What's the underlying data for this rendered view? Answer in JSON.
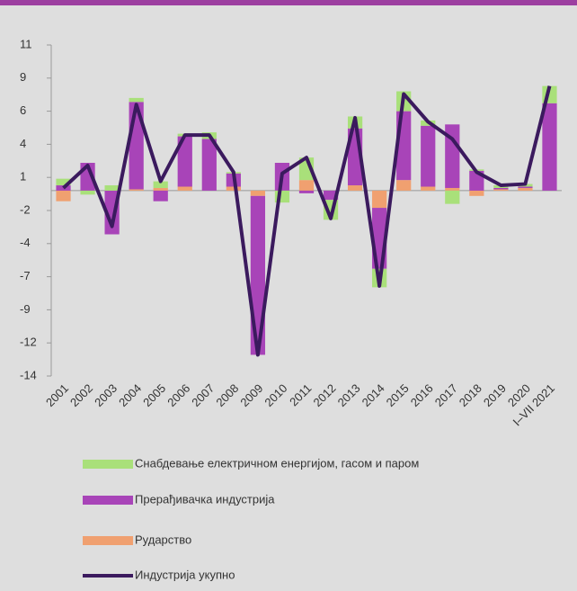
{
  "chart_data": {
    "type": "bar",
    "categories": [
      "2001",
      "2002",
      "2003",
      "2004",
      "2005",
      "2006",
      "2007",
      "2008",
      "2009",
      "2010",
      "2011",
      "2012",
      "2013",
      "2014",
      "2015",
      "2016",
      "2017",
      "2018",
      "2019",
      "2020",
      "I–VII 2021"
    ],
    "series": [
      {
        "name": "Снабдевање електричном енергијом, гасом и паром",
        "color": "#a9e07a",
        "kind": "bar",
        "values": [
          0.5,
          -0.3,
          0.4,
          0.3,
          0.5,
          0.2,
          0.5,
          0.1,
          0,
          -0.9,
          1.7,
          -1.5,
          0.9,
          -1.4,
          1.5,
          0.4,
          -1.0,
          0.1,
          0.2,
          0.2,
          1.3
        ]
      },
      {
        "name": "Прерађивачка индустрија",
        "color": "#a844b8",
        "kind": "bar",
        "values": [
          0.4,
          2.1,
          -3.3,
          6.6,
          -0.8,
          3.8,
          3.9,
          1.0,
          -12.0,
          2.1,
          -0.2,
          -0.7,
          4.3,
          -4.6,
          5.2,
          4.6,
          4.8,
          1.5,
          0.1,
          0.1,
          6.6
        ]
      },
      {
        "name": "Рударство",
        "color": "#f0a070",
        "kind": "bar",
        "values": [
          -0.8,
          0,
          0,
          0.1,
          0.2,
          0.3,
          0,
          0.3,
          -0.4,
          0,
          0.8,
          0,
          0.4,
          -1.3,
          0.8,
          0.3,
          0.2,
          -0.4,
          0.1,
          0.2,
          0
        ]
      },
      {
        "name": "Индустрија укупно",
        "color": "#3b1a5e",
        "kind": "line",
        "values": [
          0.2,
          1.9,
          -2.7,
          6.5,
          0.7,
          4.2,
          4.2,
          1.4,
          -12.4,
          1.3,
          2.5,
          -2.1,
          5.5,
          -7.2,
          7.3,
          5.2,
          3.9,
          1.4,
          0.4,
          0.5,
          7.9
        ]
      }
    ],
    "ylim": [
      -14,
      11
    ],
    "yticks": [
      -14,
      {
        "value": -11.5,
        "label": "-12"
      },
      -9,
      {
        "value": -6.5,
        "label": "-7"
      },
      -4,
      {
        "value": -1.5,
        "label": "-2"
      },
      1,
      {
        "value": 3.5,
        "label": "4"
      },
      6,
      {
        "value": 8.5,
        "label": "9"
      },
      11
    ]
  }
}
